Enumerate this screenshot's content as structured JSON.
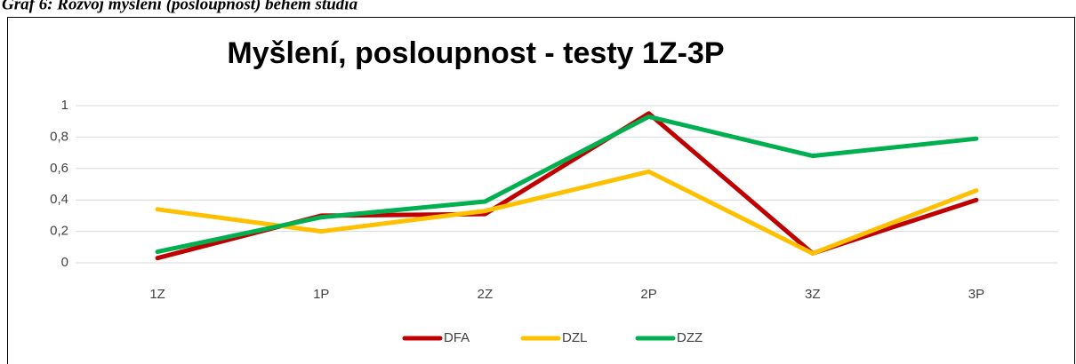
{
  "chart_data": {
    "type": "line",
    "caption": "Graf 6: Rozvoj myšlení (posloupnost) během studia",
    "title": "Myšlení, posloupnost - testy 1Z-3P",
    "categories": [
      "1Z",
      "1P",
      "2Z",
      "2P",
      "3Z",
      "3P"
    ],
    "series": [
      {
        "name": "DFA",
        "color": "#c00000",
        "values": [
          0.03,
          0.3,
          0.31,
          0.95,
          0.06,
          0.4
        ]
      },
      {
        "name": "DZL",
        "color": "#ffc000",
        "values": [
          0.34,
          0.2,
          0.33,
          0.58,
          0.06,
          0.46
        ]
      },
      {
        "name": "DZZ",
        "color": "#00b050",
        "values": [
          0.07,
          0.29,
          0.39,
          0.93,
          0.68,
          0.79
        ]
      }
    ],
    "ylim": [
      0,
      1
    ],
    "yticks": [
      0,
      {
        "value": 0.2,
        "label": "0,2"
      },
      {
        "value": 0.4,
        "label": "0,4"
      },
      {
        "value": 0.6,
        "label": "0,6"
      },
      {
        "value": 0.8,
        "label": "0,8"
      },
      1
    ],
    "grid": true,
    "legend": "bottom"
  }
}
